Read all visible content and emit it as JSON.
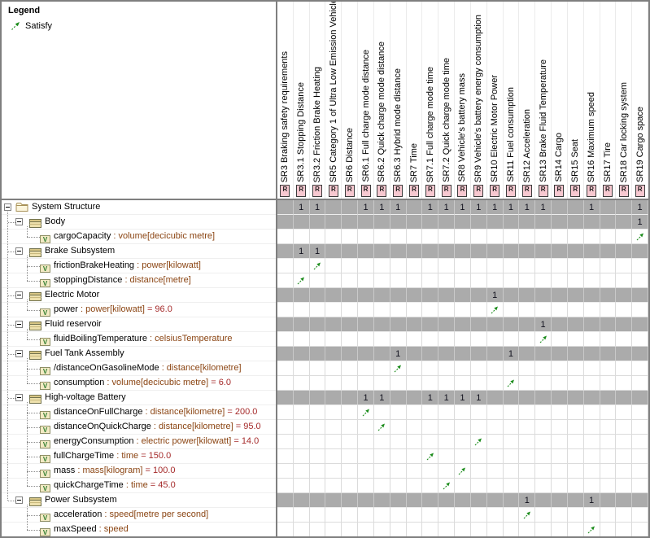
{
  "colors": {
    "satisfy_green": "#1C8C1C",
    "group_row_gray": "#ABABAB",
    "requirement_badge_pink": "#F7C8D0",
    "type_text_brown": "#8B4513",
    "value_text_red": "#A52A2A"
  },
  "icons": {
    "requirement_badge": "R",
    "value_property_badge": "V",
    "expand_state": "minus"
  },
  "legend": {
    "title": "Legend",
    "items": [
      {
        "icon": "satisfy-arrow-icon",
        "label": "Satisfy"
      }
    ]
  },
  "matrix": {
    "columns": [
      "SR3 Braking safety requirements",
      "SR3.1 Stopping Distance",
      "SR3.2 Friction Brake Heating",
      "SR5 Category 1 of Ultra Low Emission Vehicle",
      "SR6 Distance",
      "SR6.1 Full charge mode distance",
      "SR6.2 Quick charge mode distance",
      "SR6.3 Hybrid mode distance",
      "SR7 Time",
      "SR7.1 Full charge mode time",
      "SR7.2 Quick charge mode time",
      "SR8 Vehicle's battery mass",
      "SR9 Vehicle's battery energy consumption",
      "SR10 Electric Motor Power",
      "SR11 Fuel consumption",
      "SR12 Acceleration",
      "SR13 Brake Fluid Temperature",
      "SR14 Cargo",
      "SR15 Seat",
      "SR16 Maximum speed",
      "SR17 Tire",
      "SR18 Car locking system",
      "SR19 Cargo space"
    ],
    "rows": [
      {
        "name": "System Structure",
        "icon": "folder",
        "level": 0,
        "kind": "group",
        "ones": [
          2,
          3,
          6,
          7,
          8,
          10,
          11,
          12,
          13,
          14,
          15,
          16,
          17,
          20,
          23
        ]
      },
      {
        "name": "Body",
        "icon": "block",
        "level": 1,
        "kind": "group",
        "ones": [
          23
        ]
      },
      {
        "name": "cargoCapacity",
        "type": "volume[decicubic metre]",
        "icon": "value-property",
        "level": 2,
        "kind": "property",
        "arrows": [
          23
        ]
      },
      {
        "name": "Brake Subsystem",
        "icon": "block",
        "level": 1,
        "kind": "group",
        "ones": [
          2,
          3
        ]
      },
      {
        "name": "frictionBrakeHeating",
        "type": "power[kilowatt]",
        "icon": "value-property",
        "level": 2,
        "kind": "property",
        "arrows": [
          3
        ]
      },
      {
        "name": "stoppingDistance",
        "type": "distance[metre]",
        "icon": "value-property",
        "level": 2,
        "kind": "property",
        "arrows": [
          2
        ]
      },
      {
        "name": "Electric Motor",
        "icon": "block",
        "level": 1,
        "kind": "group",
        "ones": [
          14
        ]
      },
      {
        "name": "power",
        "type": "power[kilowatt]",
        "value": "96.0",
        "icon": "value-property",
        "level": 2,
        "kind": "property",
        "arrows": [
          14
        ]
      },
      {
        "name": "Fluid reservoir",
        "icon": "block",
        "level": 1,
        "kind": "group",
        "ones": [
          17
        ]
      },
      {
        "name": "fluidBoilingTemperature",
        "type": "celsiusTemperature",
        "icon": "value-property",
        "level": 2,
        "kind": "property",
        "arrows": [
          17
        ]
      },
      {
        "name": "Fuel Tank Assembly",
        "icon": "block",
        "level": 1,
        "kind": "group",
        "ones": [
          8,
          15
        ]
      },
      {
        "name": "/distanceOnGasolineMode",
        "type": "distance[kilometre]",
        "icon": "value-property",
        "level": 2,
        "kind": "property",
        "arrows": [
          8
        ]
      },
      {
        "name": "consumption",
        "type": "volume[decicubic metre]",
        "value": "6.0",
        "icon": "value-property",
        "level": 2,
        "kind": "property",
        "arrows": [
          15
        ]
      },
      {
        "name": "High-voltage Battery",
        "icon": "block",
        "level": 1,
        "kind": "group",
        "ones": [
          6,
          7,
          10,
          11,
          12,
          13
        ]
      },
      {
        "name": "distanceOnFullCharge",
        "type": "distance[kilometre]",
        "value": "200.0",
        "icon": "value-property",
        "level": 2,
        "kind": "property",
        "arrows": [
          6
        ]
      },
      {
        "name": "distanceOnQuickCharge",
        "type": "distance[kilometre]",
        "value": "95.0",
        "icon": "value-property",
        "level": 2,
        "kind": "property",
        "arrows": [
          7
        ]
      },
      {
        "name": "energyConsumption",
        "type": "electric power[kilowatt]",
        "value": "14.0",
        "icon": "value-property",
        "level": 2,
        "kind": "property",
        "arrows": [
          13
        ]
      },
      {
        "name": "fullChargeTime",
        "type": "time",
        "value": "150.0",
        "icon": "value-property",
        "level": 2,
        "kind": "property",
        "arrows": [
          10
        ]
      },
      {
        "name": "mass",
        "type": "mass[kilogram]",
        "value": "100.0",
        "icon": "value-property",
        "level": 2,
        "kind": "property",
        "arrows": [
          12
        ]
      },
      {
        "name": "quickChargeTime",
        "type": "time",
        "value": "45.0",
        "icon": "value-property",
        "level": 2,
        "kind": "property",
        "arrows": [
          11
        ]
      },
      {
        "name": "Power Subsystem",
        "icon": "block",
        "level": 1,
        "kind": "group",
        "ones": [
          16,
          20
        ]
      },
      {
        "name": "acceleration",
        "type": "speed[metre per second]",
        "icon": "value-property",
        "level": 2,
        "kind": "property",
        "arrows": [
          16
        ]
      },
      {
        "name": "maxSpeed",
        "type": "speed",
        "icon": "value-property",
        "level": 2,
        "kind": "property",
        "arrows": [
          20
        ]
      }
    ]
  }
}
